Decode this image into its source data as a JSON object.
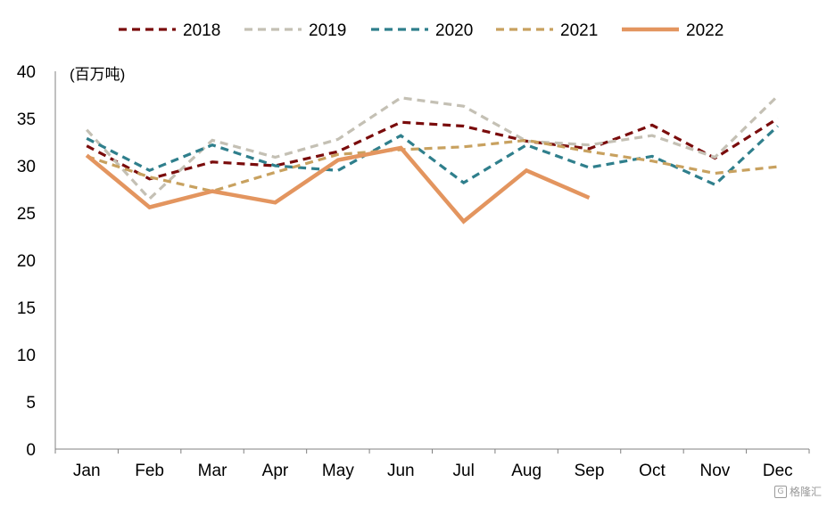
{
  "chart_data": {
    "type": "line",
    "title": "",
    "unit_label": "(百万吨)",
    "xlabel": "",
    "ylabel": "",
    "ylim": [
      0,
      40
    ],
    "yticks": [
      0,
      5,
      10,
      15,
      20,
      25,
      30,
      35,
      40
    ],
    "grid": false,
    "legend_position": "top",
    "categories": [
      "Jan",
      "Feb",
      "Mar",
      "Apr",
      "May",
      "Jun",
      "Jul",
      "Aug",
      "Sep",
      "Oct",
      "Nov",
      "Dec"
    ],
    "series": [
      {
        "name": "2018",
        "color": "#7a0c0c",
        "style": "dashed",
        "values": [
          32.1,
          28.6,
          30.4,
          30.0,
          31.5,
          34.6,
          34.2,
          32.6,
          31.8,
          34.3,
          30.8,
          35.0
        ]
      },
      {
        "name": "2019",
        "color": "#c4c0b4",
        "style": "dashed",
        "values": [
          33.8,
          26.5,
          32.7,
          30.9,
          32.8,
          37.2,
          36.3,
          32.6,
          32.2,
          33.2,
          30.9,
          37.4
        ]
      },
      {
        "name": "2020",
        "color": "#2f7f8c",
        "style": "dashed",
        "values": [
          32.9,
          29.5,
          32.2,
          30.0,
          29.5,
          33.2,
          28.2,
          32.2,
          29.8,
          31.0,
          28.0,
          34.2
        ]
      },
      {
        "name": "2021",
        "color": "#c8a15f",
        "style": "dashed",
        "values": [
          31.0,
          28.8,
          27.3,
          29.3,
          31.2,
          31.7,
          32.0,
          32.7,
          31.5,
          30.5,
          29.2,
          29.9
        ]
      },
      {
        "name": "2022",
        "color": "#e3955f",
        "style": "solid",
        "values": [
          31.1,
          25.6,
          27.3,
          26.1,
          30.6,
          31.9,
          24.1,
          29.5,
          26.6,
          null,
          null,
          null
        ]
      }
    ]
  },
  "watermark": {
    "badge": "G",
    "text": "格隆汇"
  }
}
